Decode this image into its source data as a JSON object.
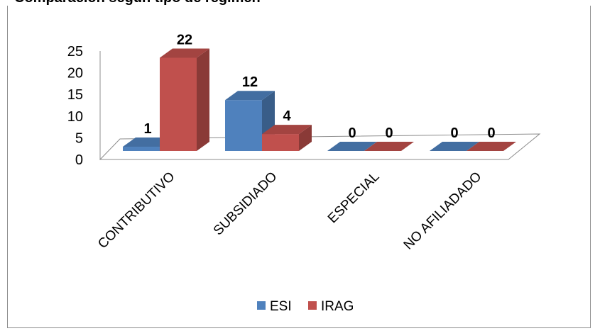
{
  "header_fragment": "Comparación según tipo de régimen",
  "chart_data": {
    "type": "bar",
    "categories": [
      "CONTRIBUTIVO",
      "SUBSIDIADO",
      "ESPECIAL",
      "NO AFILIADADO"
    ],
    "series": [
      {
        "name": "ESI",
        "values": [
          1,
          12,
          0,
          0
        ],
        "color": "#4f81bd"
      },
      {
        "name": "IRAG",
        "values": [
          22,
          4,
          0,
          0
        ],
        "color": "#c0504d"
      }
    ],
    "ylim": [
      0,
      25
    ],
    "yticks": [
      0,
      5,
      10,
      15,
      20,
      25
    ],
    "legend_position": "bottom",
    "grid": false,
    "style": "3d-clustered-column"
  }
}
